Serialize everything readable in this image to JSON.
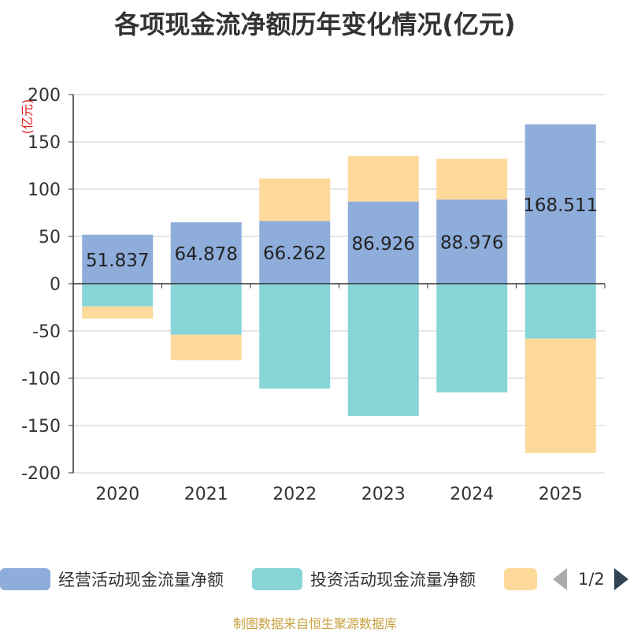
{
  "title": "各项现金流净额历年变化情况(亿元)",
  "source": "制图数据来自恒生聚源数据库",
  "pager": {
    "text": "1/2"
  },
  "chart_data": {
    "type": "bar",
    "stacked": true,
    "categories": [
      "2020",
      "2021",
      "2022",
      "2023",
      "2024",
      "2025"
    ],
    "ylabel": "(亿元)",
    "ylim": [
      -200,
      200
    ],
    "yticks": [
      200,
      150,
      100,
      50,
      0,
      -50,
      -100,
      -150,
      -200
    ],
    "grid": true,
    "legend_position": "bottom",
    "series": [
      {
        "name": "经营活动现金流量净额",
        "color": "#8eaddb",
        "values": [
          51.837,
          64.878,
          66.262,
          86.926,
          88.976,
          168.511
        ],
        "labeled": true
      },
      {
        "name": "投资活动现金流量净额",
        "color": "#88d5d8",
        "values": [
          -24,
          -54,
          -111,
          -140,
          -115,
          -58
        ]
      },
      {
        "name": "",
        "color": "#fdd99b",
        "values": [
          -13,
          -27,
          45,
          48,
          43,
          -121
        ]
      }
    ]
  }
}
